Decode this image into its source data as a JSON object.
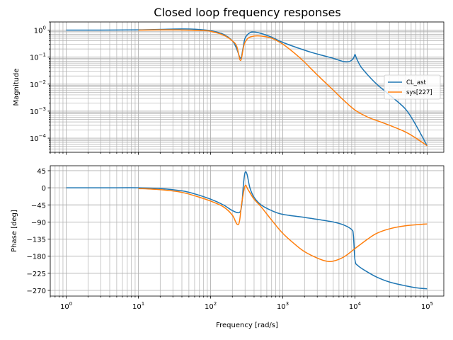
{
  "chart_data": {
    "type": "line",
    "title": "Closed loop frequency responses",
    "xscale": "log",
    "xlim": [
      0.6,
      170000
    ],
    "xlabel": "Frequency [rad/s]",
    "x_ticks": [
      {
        "value": 1,
        "base": "10",
        "exp": "0"
      },
      {
        "value": 10,
        "base": "10",
        "exp": "1"
      },
      {
        "value": 100,
        "base": "10",
        "exp": "2"
      },
      {
        "value": 1000,
        "base": "10",
        "exp": "3"
      },
      {
        "value": 10000,
        "base": "10",
        "exp": "4"
      },
      {
        "value": 100000,
        "base": "10",
        "exp": "5"
      }
    ],
    "grid": true,
    "legend": {
      "placement": "right",
      "entries": [
        "CL_ast",
        "sys[227]"
      ]
    },
    "colors": {
      "CL_ast": "#1f77b4",
      "sys[227]": "#ff7f0e",
      "grid": "#b0b0b0"
    },
    "magnitude_panel": {
      "ylabel": "Magnitude",
      "yscale": "log",
      "ylim": [
        3e-05,
        2.0
      ],
      "y_ticks": [
        {
          "value": 1,
          "base": "10",
          "exp": "0"
        },
        {
          "value": 0.1,
          "base": "10",
          "exp": "−1"
        },
        {
          "value": 0.01,
          "base": "10",
          "exp": "−2"
        },
        {
          "value": 0.001,
          "base": "10",
          "exp": "−3"
        },
        {
          "value": 0.0001,
          "base": "10",
          "exp": "−4"
        }
      ],
      "series": [
        {
          "name": "CL_ast",
          "points": [
            [
              1,
              1.0
            ],
            [
              3,
              1.0
            ],
            [
              10,
              1.02
            ],
            [
              20,
              1.06
            ],
            [
              40,
              1.1
            ],
            [
              60,
              1.08
            ],
            [
              100,
              0.95
            ],
            [
              150,
              0.7
            ],
            [
              200,
              0.4
            ],
            [
              230,
              0.2
            ],
            [
              260,
              0.09
            ],
            [
              280,
              0.2
            ],
            [
              300,
              0.5
            ],
            [
              350,
              0.8
            ],
            [
              400,
              0.85
            ],
            [
              500,
              0.75
            ],
            [
              700,
              0.55
            ],
            [
              1000,
              0.35
            ],
            [
              2000,
              0.18
            ],
            [
              3000,
              0.13
            ],
            [
              5000,
              0.09
            ],
            [
              7000,
              0.068
            ],
            [
              8500,
              0.07
            ],
            [
              9500,
              0.09
            ],
            [
              10000,
              0.125
            ],
            [
              10500,
              0.09
            ],
            [
              12000,
              0.045
            ],
            [
              15000,
              0.022
            ],
            [
              20000,
              0.01
            ],
            [
              30000,
              0.004
            ],
            [
              50000,
              0.0012
            ],
            [
              70000,
              0.0003
            ],
            [
              100000,
              5.2e-05
            ]
          ]
        },
        {
          "name": "sys[227]",
          "points": [
            [
              10,
              1.0
            ],
            [
              20,
              1.02
            ],
            [
              40,
              1.01
            ],
            [
              70,
              0.97
            ],
            [
              100,
              0.9
            ],
            [
              150,
              0.65
            ],
            [
              200,
              0.4
            ],
            [
              230,
              0.25
            ],
            [
              260,
              0.075
            ],
            [
              290,
              0.28
            ],
            [
              330,
              0.5
            ],
            [
              400,
              0.6
            ],
            [
              500,
              0.6
            ],
            [
              700,
              0.5
            ],
            [
              1000,
              0.3
            ],
            [
              1500,
              0.13
            ],
            [
              2000,
              0.065
            ],
            [
              3000,
              0.022
            ],
            [
              5000,
              0.006
            ],
            [
              7000,
              0.0025
            ],
            [
              10000,
              0.0011
            ],
            [
              15000,
              0.0006
            ],
            [
              20000,
              0.00045
            ],
            [
              30000,
              0.0003
            ],
            [
              50000,
              0.00017
            ],
            [
              70000,
              0.0001
            ],
            [
              100000,
              5.2e-05
            ]
          ]
        }
      ]
    },
    "phase_panel": {
      "ylabel": "Phase [deg]",
      "yscale": "linear",
      "ylim": [
        -285,
        58
      ],
      "y_ticks": [
        {
          "value": 45,
          "label": "45"
        },
        {
          "value": 0,
          "label": "0"
        },
        {
          "value": -45,
          "label": "−45"
        },
        {
          "value": -90,
          "label": "−90"
        },
        {
          "value": -135,
          "label": "−135"
        },
        {
          "value": -180,
          "label": "−180"
        },
        {
          "value": -225,
          "label": "−225"
        },
        {
          "value": -270,
          "label": "−270"
        }
      ],
      "series": [
        {
          "name": "CL_ast",
          "points": [
            [
              1,
              0
            ],
            [
              5,
              0
            ],
            [
              10,
              0
            ],
            [
              20,
              -2
            ],
            [
              40,
              -8
            ],
            [
              60,
              -16
            ],
            [
              100,
              -30
            ],
            [
              150,
              -45
            ],
            [
              200,
              -60
            ],
            [
              250,
              -65
            ],
            [
              270,
              -45
            ],
            [
              285,
              10
            ],
            [
              300,
              40
            ],
            [
              320,
              35
            ],
            [
              350,
              0
            ],
            [
              400,
              -25
            ],
            [
              500,
              -45
            ],
            [
              700,
              -60
            ],
            [
              1000,
              -70
            ],
            [
              2000,
              -78
            ],
            [
              3000,
              -83
            ],
            [
              5000,
              -90
            ],
            [
              7000,
              -98
            ],
            [
              9000,
              -110
            ],
            [
              9500,
              -125
            ],
            [
              10000,
              -190
            ],
            [
              11000,
              -205
            ],
            [
              15000,
              -222
            ],
            [
              20000,
              -235
            ],
            [
              30000,
              -248
            ],
            [
              50000,
              -258
            ],
            [
              70000,
              -263
            ],
            [
              100000,
              -266
            ]
          ]
        },
        {
          "name": "sys[227]",
          "points": [
            [
              10,
              -2
            ],
            [
              20,
              -5
            ],
            [
              40,
              -12
            ],
            [
              70,
              -25
            ],
            [
              100,
              -35
            ],
            [
              150,
              -50
            ],
            [
              200,
              -72
            ],
            [
              230,
              -95
            ],
            [
              250,
              -90
            ],
            [
              270,
              -40
            ],
            [
              300,
              5
            ],
            [
              330,
              -5
            ],
            [
              400,
              -30
            ],
            [
              500,
              -50
            ],
            [
              700,
              -85
            ],
            [
              1000,
              -120
            ],
            [
              1500,
              -150
            ],
            [
              2000,
              -168
            ],
            [
              3000,
              -185
            ],
            [
              4000,
              -193
            ],
            [
              5000,
              -193
            ],
            [
              7000,
              -182
            ],
            [
              10000,
              -160
            ],
            [
              15000,
              -135
            ],
            [
              20000,
              -120
            ],
            [
              30000,
              -108
            ],
            [
              50000,
              -100
            ],
            [
              100000,
              -95
            ]
          ]
        }
      ]
    }
  }
}
